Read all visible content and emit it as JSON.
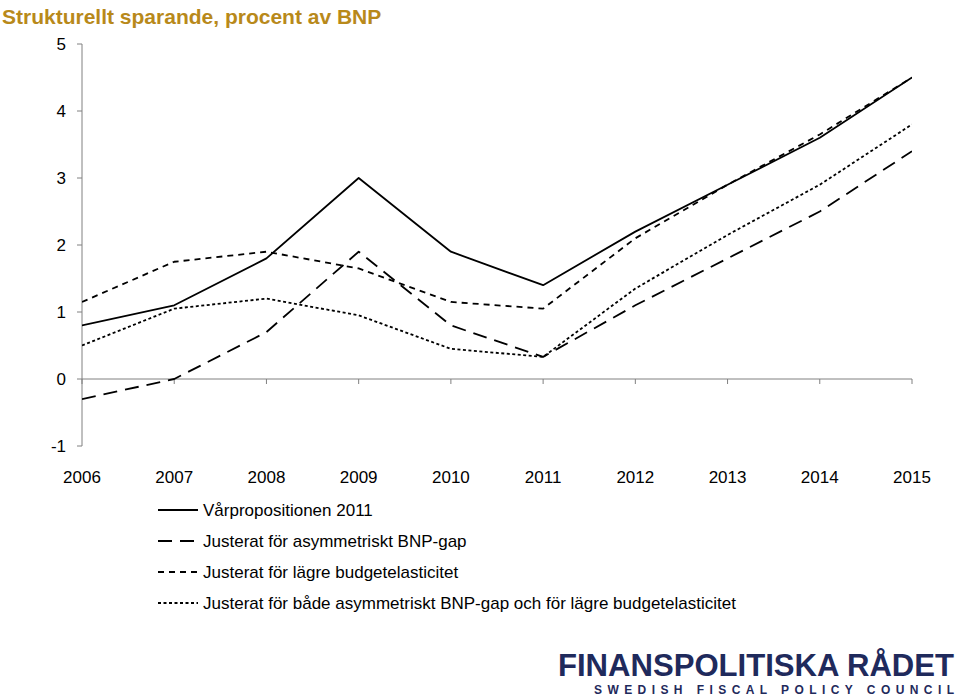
{
  "chart_data": {
    "type": "line",
    "title": "Strukturellt sparande, procent av BNP",
    "annotations": [
      "FINANSPOLITISKA RÅDET",
      "SWEDISH FISCAL POLICY COUNCIL"
    ],
    "categories": [
      "2006",
      "2007",
      "2008",
      "2009",
      "2010",
      "2011",
      "2012",
      "2013",
      "2014",
      "2015"
    ],
    "series": [
      {
        "name": "Vårpropositionen 2011",
        "color": "#000000",
        "line_style": "solid",
        "values": [
          0.8,
          1.1,
          1.8,
          3.0,
          1.9,
          1.4,
          2.2,
          2.9,
          3.6,
          4.5
        ]
      },
      {
        "name": "Justerat för asymmetriskt BNP-gap",
        "color": "#000000",
        "line_style": "long_dash",
        "values": [
          -0.3,
          0.0,
          0.7,
          1.9,
          0.8,
          0.33,
          1.1,
          1.8,
          2.5,
          3.4
        ]
      },
      {
        "name": "Justerat för lägre budgetelasticitet",
        "color": "#000000",
        "line_style": "dash",
        "values": [
          1.15,
          1.75,
          1.9,
          1.65,
          1.15,
          1.05,
          2.1,
          2.9,
          3.65,
          4.5
        ]
      },
      {
        "name": "Justerat för både asymmetriskt BNP-gap och för lägre budgetelasticitet",
        "color": "#000000",
        "line_style": "dot",
        "values": [
          0.5,
          1.05,
          1.2,
          0.95,
          0.45,
          0.33,
          1.35,
          2.15,
          2.9,
          3.8
        ]
      }
    ],
    "ylim": [
      -1,
      5
    ],
    "yticks": [
      -1,
      0,
      1,
      2,
      3,
      4,
      5
    ],
    "grid": false,
    "legend": "bottom"
  }
}
